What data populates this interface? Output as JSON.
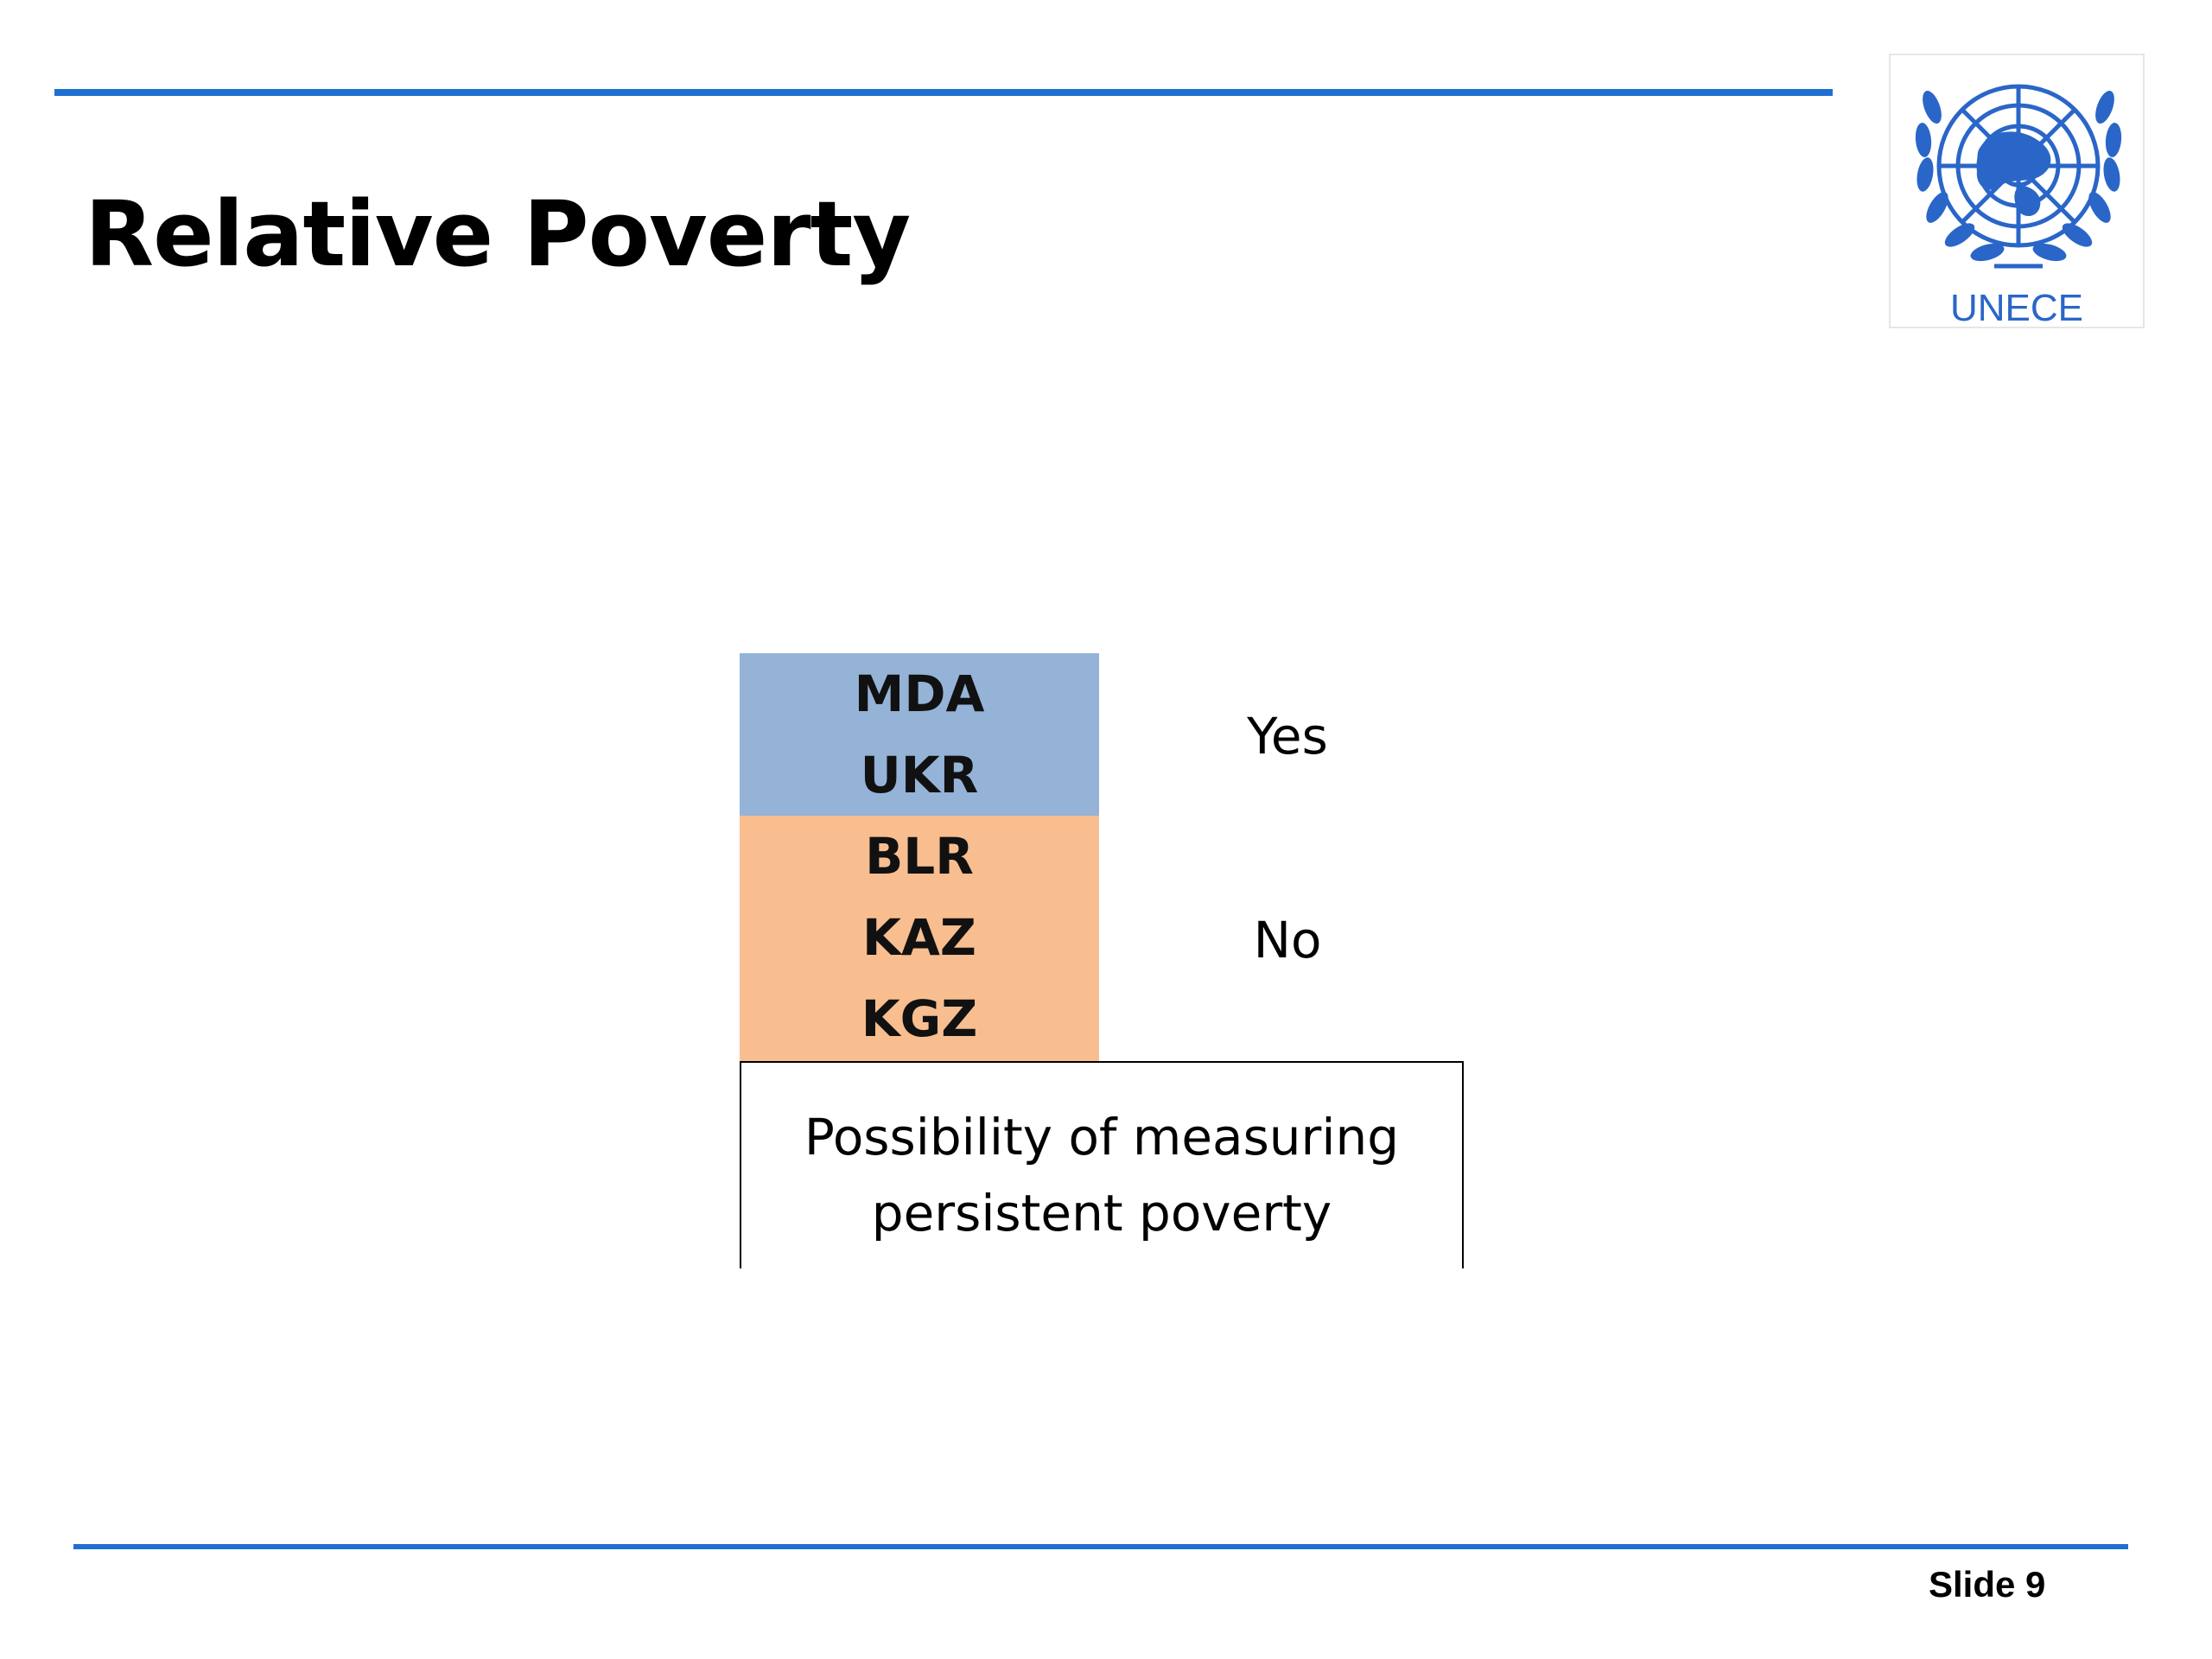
{
  "slide": {
    "title": "Relative Poverty",
    "slide_label": "Slide 9",
    "accent_color": "#1f6fd1"
  },
  "logo": {
    "text": "UNECE",
    "icon": "un-emblem-icon",
    "color": "#2a66c8"
  },
  "table": {
    "groups": [
      {
        "answer": "Yes",
        "color": "#95b3d7",
        "countries": [
          "MDA",
          "UKR"
        ]
      },
      {
        "answer": "No",
        "color": "#f8be8f",
        "countries": [
          "BLR",
          "KAZ",
          "KGZ"
        ]
      }
    ],
    "caption": "Possibility of measuring persistent poverty"
  }
}
